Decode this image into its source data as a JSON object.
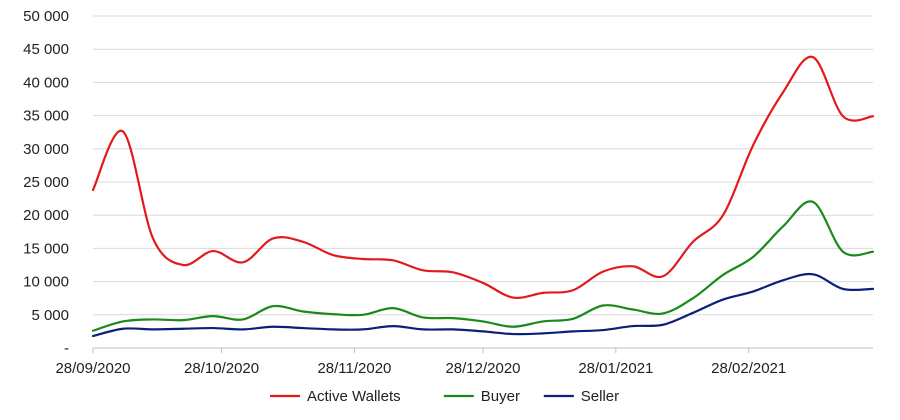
{
  "chart_data": {
    "type": "line",
    "title": "",
    "xlabel": "",
    "ylabel": "",
    "x": [
      "2020-09-28",
      "2020-10-05",
      "2020-10-12",
      "2020-10-19",
      "2020-10-26",
      "2020-11-02",
      "2020-11-09",
      "2020-11-16",
      "2020-11-23",
      "2020-11-30",
      "2020-12-07",
      "2020-12-14",
      "2020-12-21",
      "2020-12-28",
      "2021-01-04",
      "2021-01-11",
      "2021-01-18",
      "2021-01-25",
      "2021-02-01",
      "2021-02-08",
      "2021-02-15",
      "2021-02-22",
      "2021-03-01",
      "2021-03-08",
      "2021-03-15",
      "2021-03-22",
      "2021-03-29"
    ],
    "x_ticks": [
      {
        "date": "2020-09-28",
        "label": "28/09/2020"
      },
      {
        "date": "2020-10-28",
        "label": "28/10/2020"
      },
      {
        "date": "2020-11-28",
        "label": "28/11/2020"
      },
      {
        "date": "2020-12-28",
        "label": "28/12/2020"
      },
      {
        "date": "2021-01-28",
        "label": "28/01/2021"
      },
      {
        "date": "2021-02-28",
        "label": "28/02/2021"
      }
    ],
    "y_ticks": [
      {
        "value": 0,
        "label": "-"
      },
      {
        "value": 5000,
        "label": "5 000"
      },
      {
        "value": 10000,
        "label": "10 000"
      },
      {
        "value": 15000,
        "label": "15 000"
      },
      {
        "value": 20000,
        "label": "20 000"
      },
      {
        "value": 25000,
        "label": "25 000"
      },
      {
        "value": 30000,
        "label": "30 000"
      },
      {
        "value": 35000,
        "label": "35 000"
      },
      {
        "value": 40000,
        "label": "40 000"
      },
      {
        "value": 45000,
        "label": "45 000"
      },
      {
        "value": 50000,
        "label": "50 000"
      }
    ],
    "ylim": [
      0,
      50000
    ],
    "grid": true,
    "legend_position": "bottom",
    "series": [
      {
        "name": "Active Wallets",
        "color": "#e31a1c",
        "values": [
          23800,
          32600,
          16500,
          12500,
          14600,
          12900,
          16500,
          16000,
          14000,
          13400,
          13200,
          11700,
          11400,
          9800,
          7600,
          8300,
          8700,
          11500,
          12300,
          10800,
          16000,
          20000,
          30500,
          38500,
          43800,
          34900,
          34900
        ]
      },
      {
        "name": "Buyer",
        "color": "#1a8a1a",
        "values": [
          2600,
          4000,
          4300,
          4200,
          4800,
          4300,
          6300,
          5500,
          5100,
          5000,
          6000,
          4600,
          4500,
          4000,
          3200,
          4000,
          4400,
          6400,
          5800,
          5200,
          7500,
          11000,
          13700,
          18300,
          22000,
          14500,
          14500
        ]
      },
      {
        "name": "Seller",
        "color": "#0d1f7a",
        "values": [
          1800,
          2900,
          2800,
          2900,
          3000,
          2800,
          3200,
          3000,
          2800,
          2800,
          3300,
          2800,
          2800,
          2500,
          2100,
          2200,
          2500,
          2700,
          3300,
          3500,
          5300,
          7300,
          8500,
          10200,
          11100,
          8900,
          8900
        ]
      }
    ]
  }
}
